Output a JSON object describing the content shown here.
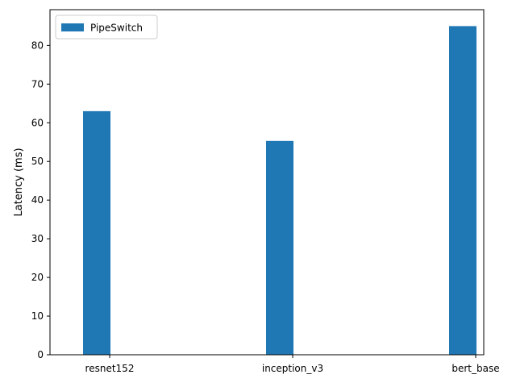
{
  "chart_data": {
    "type": "bar",
    "categories": [
      "resnet152",
      "inception_v3",
      "bert_base"
    ],
    "series": [
      {
        "name": "PipeSwitch",
        "values": [
          63.0,
          55.3,
          85.0
        ],
        "color": "#1f77b4"
      }
    ],
    "ylabel": "Latency (ms)",
    "xlabel": "",
    "ylim": [
      0,
      89.25
    ],
    "yticks": [
      0,
      10,
      20,
      30,
      40,
      50,
      60,
      70,
      80
    ],
    "grid": false,
    "legend": "top-left"
  }
}
